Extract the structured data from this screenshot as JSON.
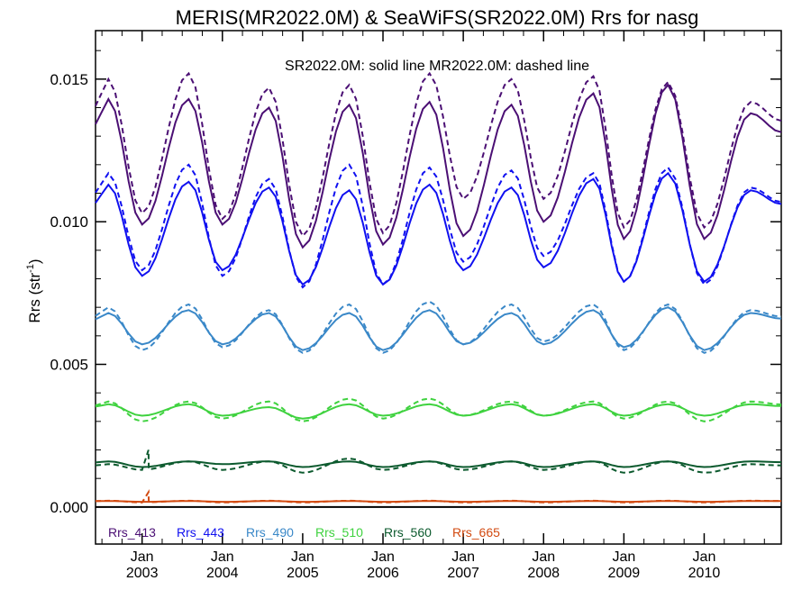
{
  "chart_data": {
    "type": "line",
    "title": "MERIS(MR2022.0M) & SeaWiFS(SR2022.0M)  Rrs for nasg",
    "annotation": "SR2022.0M: solid line   MR2022.0M: dashed line",
    "ylabel": "Rrs (str",
    "ylabel_sup": "-1",
    "ylabel_close": ")",
    "ylim": [
      -0.0013,
      0.0167
    ],
    "xlim": [
      2002.42,
      2010.96
    ],
    "yticks": [
      {
        "value": 0.0,
        "label": "0.000"
      },
      {
        "value": 0.005,
        "label": "0.005"
      },
      {
        "value": 0.01,
        "label": "0.010"
      },
      {
        "value": 0.015,
        "label": "0.015"
      }
    ],
    "xticks": [
      {
        "value": 2003.0,
        "month": "Jan",
        "year": "2003"
      },
      {
        "value": 2004.0,
        "month": "Jan",
        "year": "2004"
      },
      {
        "value": 2005.0,
        "month": "Jan",
        "year": "2005"
      },
      {
        "value": 2006.0,
        "month": "Jan",
        "year": "2006"
      },
      {
        "value": 2007.0,
        "month": "Jan",
        "year": "2007"
      },
      {
        "value": 2008.0,
        "month": "Jan",
        "year": "2008"
      },
      {
        "value": 2009.0,
        "month": "Jan",
        "year": "2009"
      },
      {
        "value": 2010.0,
        "month": "Jan",
        "year": "2010"
      }
    ],
    "series": [
      {
        "name": "Rrs_413",
        "color": "#4b0f74",
        "peak_dates": [
          2002.58,
          2003.58,
          2004.58,
          2005.58,
          2006.58,
          2007.6,
          2008.62,
          2009.55,
          2010.58
        ],
        "trough_dates": [
          2003.0,
          2004.0,
          2005.0,
          2006.0,
          2007.0,
          2008.0,
          2009.0,
          2010.0
        ],
        "sr_peaks": [
          0.0143,
          0.0143,
          0.014,
          0.0141,
          0.0142,
          0.0141,
          0.0145,
          0.0148,
          0.0138
        ],
        "sr_troughs": [
          0.0099,
          0.0099,
          0.0091,
          0.0092,
          0.0095,
          0.01,
          0.0094,
          0.0094
        ],
        "mr_peaks": [
          0.015,
          0.0152,
          0.0147,
          0.0148,
          0.0152,
          0.015,
          0.0151,
          0.0149,
          0.0142
        ],
        "mr_troughs": [
          0.0103,
          0.0101,
          0.0095,
          0.0096,
          0.0108,
          0.0108,
          0.0098,
          0.0098
        ]
      },
      {
        "name": "Rrs_443",
        "color": "#1010f0",
        "peak_dates": [
          2002.58,
          2003.58,
          2004.58,
          2005.58,
          2006.58,
          2007.6,
          2008.62,
          2009.55,
          2010.58
        ],
        "trough_dates": [
          2003.0,
          2004.0,
          2005.0,
          2006.0,
          2007.0,
          2008.0,
          2009.0,
          2010.0
        ],
        "sr_peaks": [
          0.0113,
          0.0114,
          0.0112,
          0.0111,
          0.0113,
          0.0112,
          0.0115,
          0.0117,
          0.0111
        ],
        "sr_troughs": [
          0.0081,
          0.0083,
          0.0078,
          0.0078,
          0.0083,
          0.0084,
          0.0079,
          0.0079
        ],
        "mr_peaks": [
          0.0117,
          0.012,
          0.0115,
          0.012,
          0.0119,
          0.0118,
          0.0117,
          0.0119,
          0.0112
        ],
        "mr_troughs": [
          0.0083,
          0.0081,
          0.0077,
          0.0078,
          0.0086,
          0.0088,
          0.0079,
          0.0078
        ]
      },
      {
        "name": "Rrs_490",
        "color": "#3a88c8",
        "peak_dates": [
          2002.58,
          2003.58,
          2004.58,
          2005.58,
          2006.58,
          2007.6,
          2008.62,
          2009.55,
          2010.58
        ],
        "trough_dates": [
          2003.0,
          2004.0,
          2005.0,
          2006.0,
          2007.0,
          2008.0,
          2009.0,
          2010.0
        ],
        "sr_peaks": [
          0.0068,
          0.0069,
          0.0068,
          0.0068,
          0.0069,
          0.0068,
          0.0069,
          0.007,
          0.0068
        ],
        "sr_troughs": [
          0.0057,
          0.0057,
          0.0055,
          0.0055,
          0.0057,
          0.0057,
          0.0056,
          0.0055
        ],
        "mr_peaks": [
          0.007,
          0.0071,
          0.0069,
          0.0071,
          0.0072,
          0.0071,
          0.0071,
          0.0071,
          0.0069
        ],
        "mr_troughs": [
          0.0055,
          0.0056,
          0.0054,
          0.0054,
          0.0057,
          0.0058,
          0.0055,
          0.0054
        ]
      },
      {
        "name": "Rrs_510",
        "color": "#3fd23f",
        "peak_dates": [
          2002.58,
          2003.58,
          2004.58,
          2005.58,
          2006.58,
          2007.6,
          2008.62,
          2009.55,
          2010.58
        ],
        "trough_dates": [
          2003.0,
          2004.0,
          2005.0,
          2006.0,
          2007.0,
          2008.0,
          2009.0,
          2010.0
        ],
        "sr_peaks": [
          0.0036,
          0.0036,
          0.0035,
          0.0036,
          0.0036,
          0.0036,
          0.0036,
          0.0036,
          0.0036
        ],
        "sr_troughs": [
          0.0032,
          0.0032,
          0.0031,
          0.0032,
          0.0032,
          0.0032,
          0.0032,
          0.0032
        ],
        "mr_peaks": [
          0.0037,
          0.0037,
          0.0037,
          0.0038,
          0.0038,
          0.0037,
          0.0037,
          0.0037,
          0.0037
        ],
        "mr_troughs": [
          0.003,
          0.0031,
          0.003,
          0.0031,
          0.0032,
          0.0032,
          0.0031,
          0.003
        ]
      },
      {
        "name": "Rrs_560",
        "color": "#0c5a2e",
        "peak_dates": [
          2002.58,
          2003.58,
          2004.58,
          2005.58,
          2006.58,
          2007.6,
          2008.62,
          2009.55,
          2010.58
        ],
        "trough_dates": [
          2003.0,
          2004.0,
          2005.0,
          2006.0,
          2007.0,
          2008.0,
          2009.0,
          2010.0
        ],
        "sr_peaks": [
          0.0016,
          0.0016,
          0.0016,
          0.0016,
          0.0016,
          0.0016,
          0.0016,
          0.0016,
          0.0016
        ],
        "sr_troughs": [
          0.0014,
          0.0015,
          0.0014,
          0.0014,
          0.0014,
          0.0014,
          0.0014,
          0.0014
        ],
        "mr_peaks": [
          0.0015,
          0.0016,
          0.0016,
          0.0017,
          0.0016,
          0.0016,
          0.0016,
          0.0016,
          0.0015
        ],
        "mr_troughs": [
          0.0013,
          0.0013,
          0.0012,
          0.0013,
          0.0013,
          0.0013,
          0.0012,
          0.0012
        ]
      },
      {
        "name": "Rrs_665",
        "color": "#d24a10",
        "peak_dates": [
          2002.58,
          2003.58,
          2004.58,
          2005.58,
          2006.58,
          2007.6,
          2008.62,
          2009.55,
          2010.58
        ],
        "trough_dates": [
          2003.0,
          2004.0,
          2005.0,
          2006.0,
          2007.0,
          2008.0,
          2009.0,
          2010.0
        ],
        "sr_peaks": [
          0.00021,
          0.00021,
          0.00021,
          0.00021,
          0.00021,
          0.00021,
          0.00021,
          0.00021,
          0.00021
        ],
        "sr_troughs": [
          0.00018,
          0.00018,
          0.00018,
          0.00018,
          0.00018,
          0.00018,
          0.00018,
          0.00018
        ],
        "mr_peaks": [
          0.00022,
          0.00022,
          0.00022,
          0.00022,
          0.00022,
          0.00022,
          0.00022,
          0.00022,
          0.00022
        ],
        "mr_troughs": [
          0.00016,
          0.00016,
          0.00016,
          0.00016,
          0.00016,
          0.00016,
          0.00016,
          0.00016
        ]
      }
    ],
    "spikes": [
      {
        "series": "Rrs_560",
        "date": 2003.08,
        "value": 0.002
      },
      {
        "series": "Rrs_665",
        "date": 2003.08,
        "value": 0.00052
      }
    ],
    "legend_position": "bottom-inside",
    "grid": false
  }
}
